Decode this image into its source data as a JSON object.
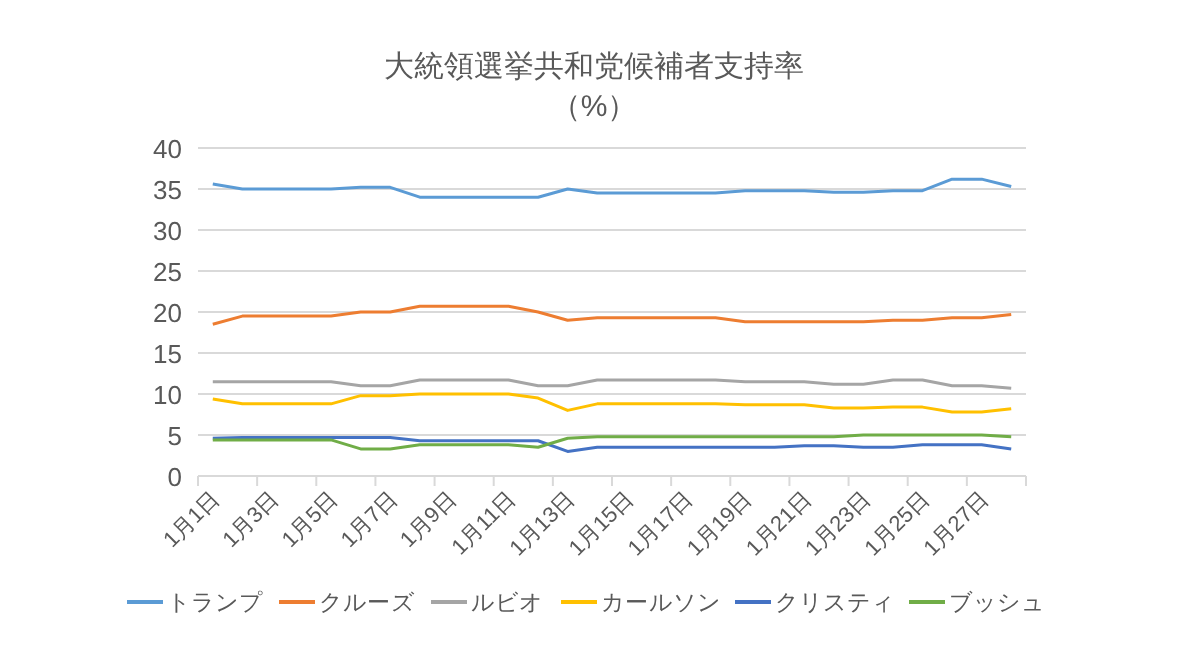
{
  "chart_data": {
    "type": "line",
    "title": "大統領選挙共和党候補者支持率",
    "subtitle": "（%）",
    "categories": [
      "1月1日",
      null,
      "1月3日",
      null,
      "1月5日",
      null,
      "1月7日",
      null,
      "1月9日",
      null,
      "1月11日",
      null,
      "1月13日",
      null,
      "1月15日",
      null,
      "1月17日",
      null,
      "1月19日",
      null,
      "1月21日",
      null,
      "1月23日",
      null,
      "1月25日",
      null,
      "1月27日",
      null
    ],
    "series": [
      {
        "name": "トランプ",
        "color": "#5b9bd5",
        "values": [
          35.6,
          35,
          35,
          35,
          35,
          35.2,
          35.2,
          34,
          34,
          34,
          34,
          34,
          35,
          34.5,
          34.5,
          34.5,
          34.5,
          34.5,
          34.8,
          34.8,
          34.8,
          34.6,
          34.6,
          34.8,
          34.8,
          36.2,
          36.2,
          35.3
        ]
      },
      {
        "name": "クルーズ",
        "color": "#ed7d31",
        "values": [
          18.5,
          19.5,
          19.5,
          19.5,
          19.5,
          20,
          20,
          20.7,
          20.7,
          20.7,
          20.7,
          20,
          19,
          19.3,
          19.3,
          19.3,
          19.3,
          19.3,
          18.8,
          18.8,
          18.8,
          18.8,
          18.8,
          19,
          19,
          19.3,
          19.3,
          19.7
        ]
      },
      {
        "name": "ルビオ",
        "color": "#a5a5a5",
        "values": [
          11.5,
          11.5,
          11.5,
          11.5,
          11.5,
          11,
          11,
          11.7,
          11.7,
          11.7,
          11.7,
          11,
          11,
          11.7,
          11.7,
          11.7,
          11.7,
          11.7,
          11.5,
          11.5,
          11.5,
          11.2,
          11.2,
          11.7,
          11.7,
          11,
          11,
          10.7
        ]
      },
      {
        "name": "カールソン",
        "color": "#ffc000",
        "values": [
          9.4,
          8.8,
          8.8,
          8.8,
          8.8,
          9.8,
          9.8,
          10,
          10,
          10,
          10,
          9.5,
          8,
          8.8,
          8.8,
          8.8,
          8.8,
          8.8,
          8.7,
          8.7,
          8.7,
          8.3,
          8.3,
          8.4,
          8.4,
          7.8,
          7.8,
          8.2
        ]
      },
      {
        "name": "クリスティ",
        "color": "#4472c4",
        "values": [
          4.6,
          4.7,
          4.7,
          4.7,
          4.7,
          4.7,
          4.7,
          4.3,
          4.3,
          4.3,
          4.3,
          4.3,
          3,
          3.5,
          3.5,
          3.5,
          3.5,
          3.5,
          3.5,
          3.5,
          3.7,
          3.7,
          3.5,
          3.5,
          3.8,
          3.8,
          3.8,
          3.3
        ]
      },
      {
        "name": "ブッシュ",
        "color": "#70ad47",
        "values": [
          4.4,
          4.4,
          4.4,
          4.4,
          4.4,
          3.3,
          3.3,
          3.8,
          3.8,
          3.8,
          3.8,
          3.5,
          4.6,
          4.8,
          4.8,
          4.8,
          4.8,
          4.8,
          4.8,
          4.8,
          4.8,
          4.8,
          5,
          5,
          5,
          5,
          5,
          4.8
        ]
      }
    ],
    "ylim": [
      0,
      40
    ],
    "yticks": [
      0,
      5,
      10,
      15,
      20,
      25,
      30,
      35,
      40
    ],
    "grid": "y",
    "legend": "bottom",
    "marker": "none",
    "line_style": "solid"
  }
}
